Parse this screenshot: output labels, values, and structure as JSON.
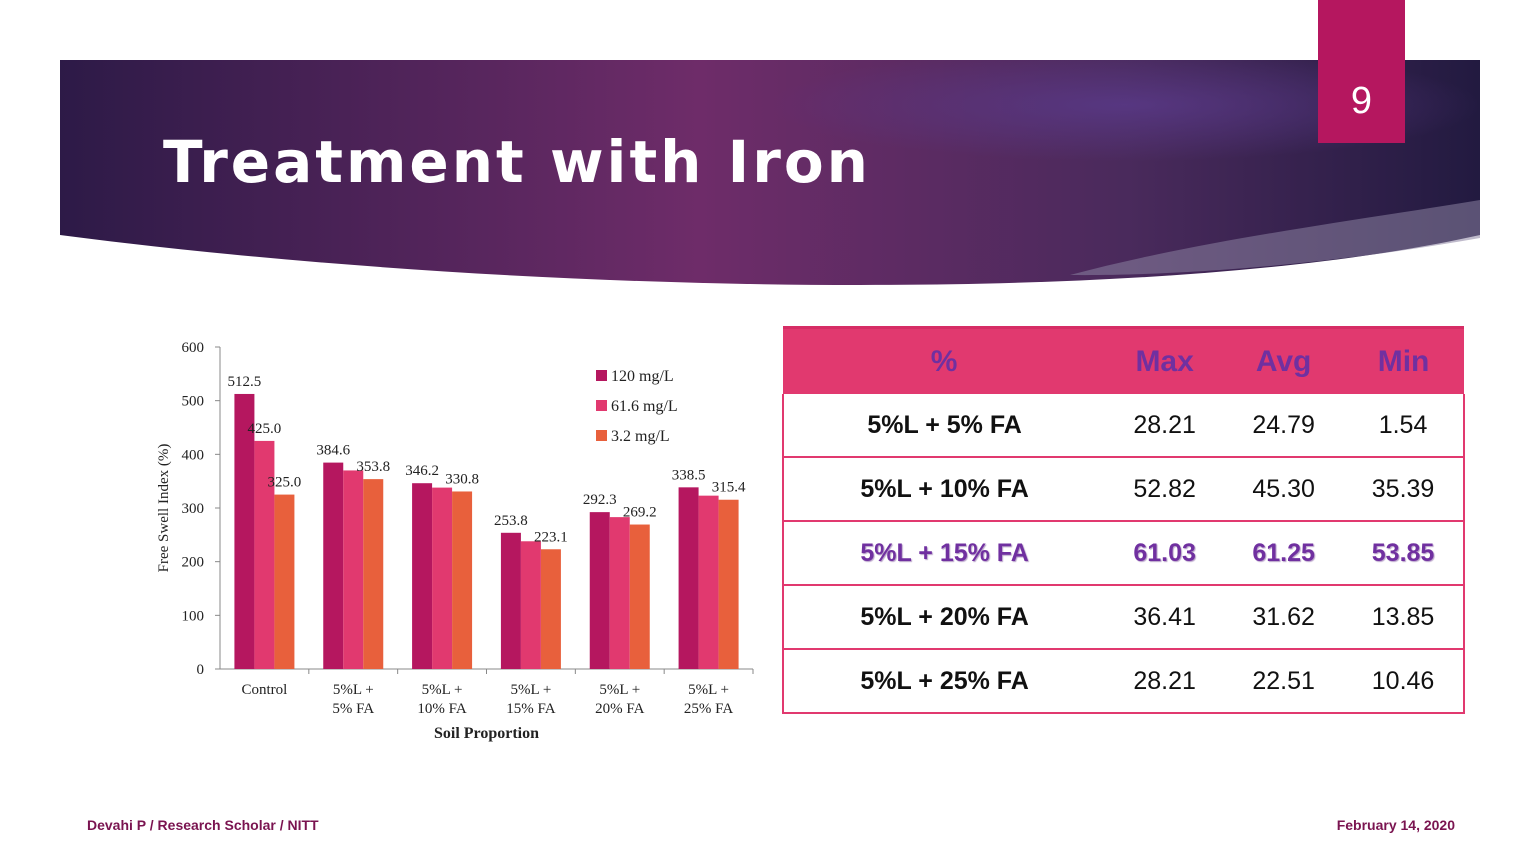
{
  "slide": {
    "page_number": "9",
    "title": "Treatment with Iron",
    "footer_left": "Devahi P / Research Scholar / NITT",
    "footer_right": "February 14, 2020"
  },
  "colors": {
    "accent": "#b5175f",
    "banner_dark": "#2d1a47",
    "banner_mid": "#6e2c69",
    "table_header": "#e1396f",
    "highlight_text": "#7030a0"
  },
  "chart_data": {
    "type": "bar",
    "categories": [
      [
        "Control"
      ],
      [
        "5%L +",
        "5% FA"
      ],
      [
        "5%L +",
        "10% FA"
      ],
      [
        "5%L +",
        "15% FA"
      ],
      [
        "5%L +",
        "20% FA"
      ],
      [
        "5%L +",
        "25% FA"
      ]
    ],
    "series": [
      {
        "name": "120 mg/L",
        "color": "#b5175f",
        "values": [
          512.5,
          384.6,
          346.2,
          253.8,
          292.3,
          338.5
        ]
      },
      {
        "name": "61.6 mg/L",
        "color": "#e1396f",
        "values": [
          425.0,
          370.0,
          338.0,
          238.0,
          283.0,
          323.0
        ]
      },
      {
        "name": "3.2 mg/L",
        "color": "#e8603c",
        "values": [
          325.0,
          353.8,
          330.8,
          223.1,
          269.2,
          315.4
        ]
      }
    ],
    "data_labels": [
      [
        {
          "series": 0,
          "text": "512.5"
        },
        {
          "series": 1,
          "text": "425.0"
        },
        {
          "series": 2,
          "text": "325.0"
        }
      ],
      [
        {
          "series": 0,
          "text": "384.6"
        },
        {
          "series": 2,
          "text": "353.8"
        }
      ],
      [
        {
          "series": 0,
          "text": "346.2"
        },
        {
          "series": 2,
          "text": "330.8"
        }
      ],
      [
        {
          "series": 0,
          "text": "253.8"
        },
        {
          "series": 2,
          "text": "223.1"
        }
      ],
      [
        {
          "series": 0,
          "text": "292.3"
        },
        {
          "series": 2,
          "text": "269.2"
        }
      ],
      [
        {
          "series": 0,
          "text": "338.5"
        },
        {
          "series": 2,
          "text": "315.4"
        }
      ]
    ],
    "xlabel": "Soil Proportion",
    "ylabel": "Free Swell Index (%)",
    "ylim": [
      0,
      600
    ],
    "yticks": [
      0,
      100,
      200,
      300,
      400,
      500,
      600
    ],
    "grid": false,
    "legend_position": "top-right"
  },
  "table": {
    "headers": [
      "%",
      "Max",
      "Avg",
      "Min"
    ],
    "rows": [
      [
        "5%L + 5% FA",
        "28.21",
        "24.79",
        "1.54"
      ],
      [
        "5%L + 10% FA",
        "52.82",
        "45.30",
        "35.39"
      ],
      [
        "5%L + 15% FA",
        "61.03",
        "61.25",
        "53.85"
      ],
      [
        "5%L + 20% FA",
        "36.41",
        "31.62",
        "13.85"
      ],
      [
        "5%L + 25% FA",
        "28.21",
        "22.51",
        "10.46"
      ]
    ],
    "highlight_row": 2
  }
}
